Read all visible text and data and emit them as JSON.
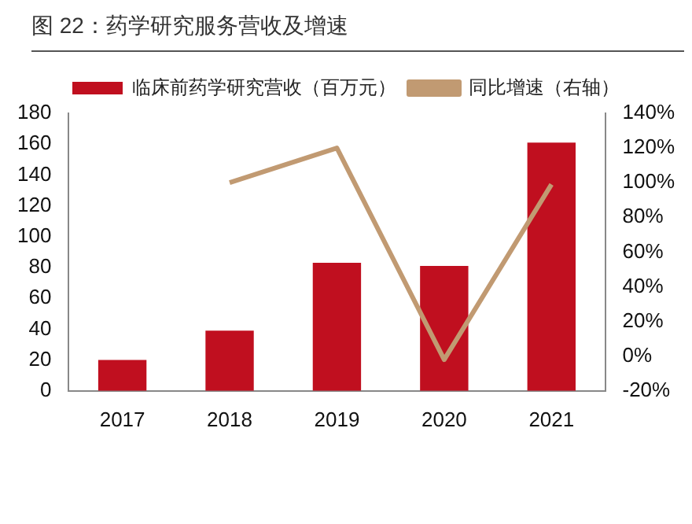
{
  "chart_data": {
    "type": "bar",
    "title": "图 22：药学研究服务营收及增速",
    "categories": [
      "2017",
      "2018",
      "2019",
      "2020",
      "2021"
    ],
    "series": [
      {
        "name": "临床前药学研究营收（百万元）",
        "color": "#c00f1f",
        "values": [
          20,
          39,
          83,
          81,
          161
        ]
      },
      {
        "name": "同比增速（右轴）",
        "type": "line",
        "axis": "y2",
        "color": "#c19a72",
        "values": [
          null,
          100,
          120,
          -2,
          99
        ]
      }
    ],
    "ylim": [
      0,
      180
    ],
    "yticks": [
      0,
      20,
      40,
      60,
      80,
      100,
      120,
      140,
      160,
      180
    ],
    "y2lim": [
      -20,
      140
    ],
    "y2ticks": [
      {
        "value": -20,
        "label": "-20%"
      },
      {
        "value": 0,
        "label": "0%"
      },
      {
        "value": 20,
        "label": "20%"
      },
      {
        "value": 40,
        "label": "40%"
      },
      {
        "value": 60,
        "label": "60%"
      },
      {
        "value": 80,
        "label": "80%"
      },
      {
        "value": 100,
        "label": "100%"
      },
      {
        "value": 120,
        "label": "120%"
      },
      {
        "value": 140,
        "label": "140%"
      }
    ],
    "grid": false,
    "legend": "top",
    "marker": "none"
  }
}
